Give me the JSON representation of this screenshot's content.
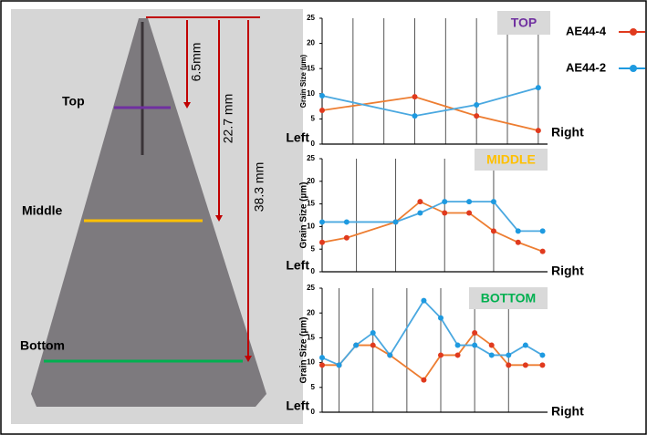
{
  "photo": {
    "labels": [
      "Top",
      "Middle",
      "Bottom"
    ],
    "dimensions": [
      "6.5mm",
      "22.7 mm",
      "38.3 mm"
    ]
  },
  "chart_data": [
    {
      "type": "line",
      "title": "TOP",
      "title_color": "#7030a0",
      "ylabel": "Grain Size (µm)",
      "xlabel_left": "Left",
      "xlabel_right": "Right",
      "x": [
        0,
        3,
        5,
        7
      ],
      "xlim": [
        0,
        7.3
      ],
      "ylim": [
        0,
        25
      ],
      "yticks": [
        0,
        5,
        10,
        15,
        20,
        25
      ],
      "xgrid": [
        1,
        2,
        3,
        4,
        5,
        6,
        7
      ],
      "series": [
        {
          "name": "AE44-4",
          "color": "#ed7d31",
          "marker_color": "#e03a1e",
          "values": [
            6.7,
            9.4,
            5.6,
            2.7
          ]
        },
        {
          "name": "AE44-2",
          "color": "#4aa8e0",
          "marker_color": "#1e9ae0",
          "values": [
            9.6,
            5.6,
            7.8,
            11.2
          ]
        }
      ]
    },
    {
      "type": "line",
      "title": "MIDDLE",
      "title_color": "#ffc000",
      "ylabel": "Grain Size (µm)",
      "xlabel_left": "Left",
      "xlabel_right": "Right",
      "x": [
        0,
        1,
        3,
        4,
        5,
        6,
        7,
        8,
        9
      ],
      "xlim": [
        0,
        9.2
      ],
      "ylim": [
        0,
        25
      ],
      "yticks": [
        0,
        5,
        10,
        15,
        20,
        25
      ],
      "xgrid": [
        1.4,
        3,
        5,
        7
      ],
      "series": [
        {
          "color": "#ed7d31",
          "marker_color": "#e03a1e",
          "values": [
            6.5,
            7.5,
            11,
            15.5,
            13,
            13,
            9,
            6.5,
            4.5
          ]
        },
        {
          "color": "#4aa8e0",
          "marker_color": "#1e9ae0",
          "values": [
            11,
            11,
            11,
            13,
            15.5,
            15.5,
            15.5,
            9,
            9
          ]
        }
      ]
    },
    {
      "type": "line",
      "title": "BOTTOM",
      "title_color": "#00b050",
      "ylabel": "Grain Size (µm)",
      "xlabel_left": "Left",
      "xlabel_right": "Right",
      "x": [
        0,
        1,
        2,
        3,
        4,
        6,
        7,
        8,
        9,
        10,
        11,
        12,
        13
      ],
      "xlim": [
        0,
        13.3
      ],
      "ylim": [
        0,
        25
      ],
      "yticks": [
        0,
        5,
        10,
        15,
        20,
        25
      ],
      "xgrid": [
        1,
        3,
        5,
        7,
        9,
        11
      ],
      "series": [
        {
          "color": "#ed7d31",
          "marker_color": "#e03a1e",
          "values": [
            9.5,
            9.5,
            13.5,
            13.5,
            11.5,
            6.5,
            11.5,
            11.5,
            16,
            13.5,
            9.5,
            9.5,
            9.5
          ]
        },
        {
          "color": "#4aa8e0",
          "marker_color": "#1e9ae0",
          "values": [
            11,
            9.5,
            13.5,
            16,
            11.5,
            22.5,
            19,
            13.5,
            13.5,
            11.5,
            11.5,
            13.5,
            11.5
          ]
        }
      ]
    }
  ]
}
